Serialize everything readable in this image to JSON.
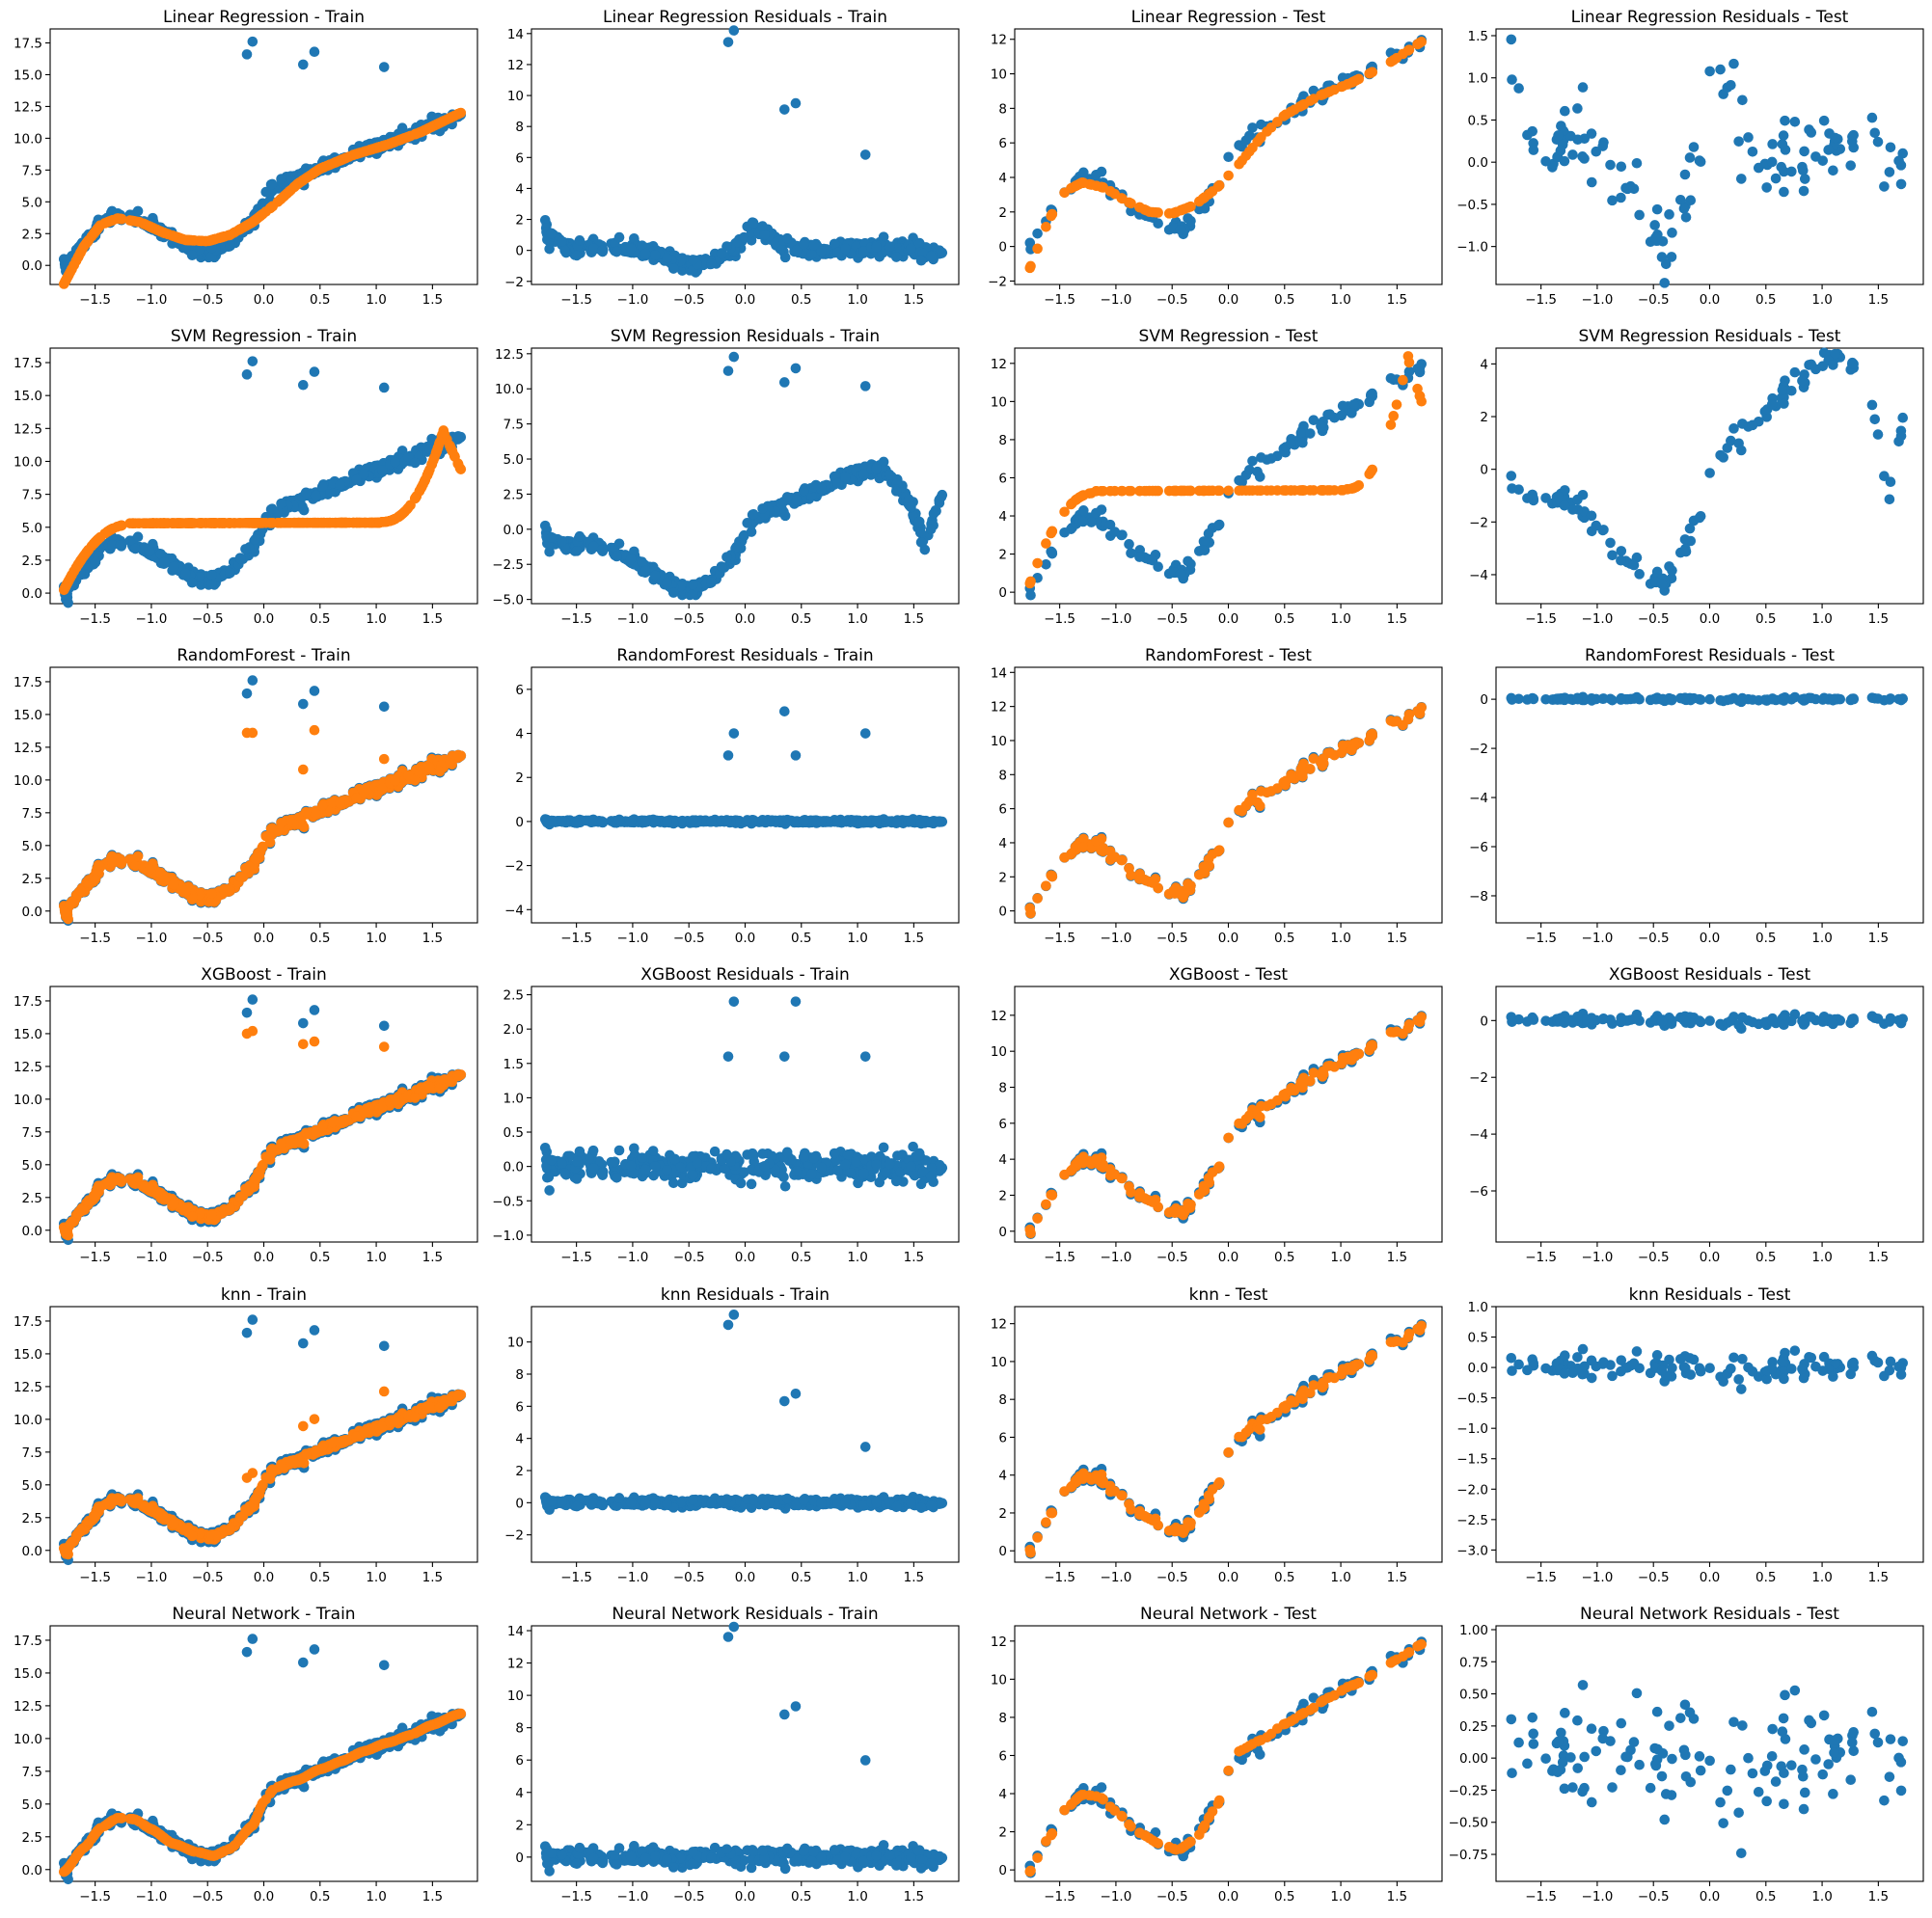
{
  "chart_data": {
    "type": "scatter",
    "grid": false,
    "colors": {
      "actual": "#1f77b4",
      "predicted": "#ff7f0e"
    },
    "models": [
      {
        "name": "Linear Regression",
        "kind": "lin",
        "train_y": {
          "ticks": [
            0.0,
            2.5,
            5.0,
            7.5,
            10.0,
            12.5,
            15.0,
            17.5
          ],
          "labels": [
            "0.0",
            "2.5",
            "5.0",
            "7.5",
            "10.0",
            "12.5",
            "15.0",
            "17.5"
          ],
          "range": [
            -1.5,
            18.6
          ]
        },
        "train_res_y": {
          "ticks": [
            -2,
            0,
            2,
            4,
            6,
            8,
            10,
            12,
            14
          ],
          "labels": [
            "−2",
            "0",
            "2",
            "4",
            "6",
            "8",
            "10",
            "12",
            "14"
          ],
          "range": [
            -2.2,
            14.3
          ]
        },
        "test_y": {
          "ticks": [
            -2,
            0,
            2,
            4,
            6,
            8,
            10,
            12
          ],
          "labels": [
            "−2",
            "0",
            "2",
            "4",
            "6",
            "8",
            "10",
            "12"
          ],
          "range": [
            -2.2,
            12.6
          ]
        },
        "test_res_y": {
          "ticks": [
            -1.0,
            -0.5,
            0.0,
            0.5,
            1.0,
            1.5
          ],
          "labels": [
            "−1.0",
            "−0.5",
            "0.0",
            "0.5",
            "1.0",
            "1.5"
          ],
          "range": [
            -1.45,
            1.58
          ]
        }
      },
      {
        "name": "SVM Regression",
        "kind": "svm",
        "train_y": {
          "ticks": [
            0.0,
            2.5,
            5.0,
            7.5,
            10.0,
            12.5,
            15.0,
            17.5
          ],
          "labels": [
            "0.0",
            "2.5",
            "5.0",
            "7.5",
            "10.0",
            "12.5",
            "15.0",
            "17.5"
          ],
          "range": [
            -0.8,
            18.6
          ]
        },
        "train_res_y": {
          "ticks": [
            -5.0,
            -2.5,
            0.0,
            2.5,
            5.0,
            7.5,
            10.0,
            12.5
          ],
          "labels": [
            "−5.0",
            "−2.5",
            "0.0",
            "2.5",
            "5.0",
            "7.5",
            "10.0",
            "12.5"
          ],
          "range": [
            -5.3,
            12.9
          ]
        },
        "test_y": {
          "ticks": [
            0,
            2,
            4,
            6,
            8,
            10,
            12
          ],
          "labels": [
            "0",
            "2",
            "4",
            "6",
            "8",
            "10",
            "12"
          ],
          "range": [
            -0.6,
            12.8
          ]
        },
        "test_res_y": {
          "ticks": [
            -4,
            -2,
            0,
            2,
            4
          ],
          "labels": [
            "−4",
            "−2",
            "0",
            "2",
            "4"
          ],
          "range": [
            -5.1,
            4.6
          ]
        }
      },
      {
        "name": "RandomForest",
        "kind": "rf",
        "train_y": {
          "ticks": [
            0.0,
            2.5,
            5.0,
            7.5,
            10.0,
            12.5,
            15.0,
            17.5
          ],
          "labels": [
            "0.0",
            "2.5",
            "5.0",
            "7.5",
            "10.0",
            "12.5",
            "15.0",
            "17.5"
          ],
          "range": [
            -0.9,
            18.6
          ]
        },
        "train_res_y": {
          "ticks": [
            -4,
            -2,
            0,
            2,
            4,
            6
          ],
          "labels": [
            "−4",
            "−2",
            "0",
            "2",
            "4",
            "6"
          ],
          "range": [
            -4.6,
            7.0
          ]
        },
        "test_y": {
          "ticks": [
            0,
            2,
            4,
            6,
            8,
            10,
            12,
            14
          ],
          "labels": [
            "0",
            "2",
            "4",
            "6",
            "8",
            "10",
            "12",
            "14"
          ],
          "range": [
            -0.7,
            14.3
          ]
        },
        "test_res_y": {
          "ticks": [
            -8,
            -6,
            -4,
            -2,
            0
          ],
          "labels": [
            "−8",
            "−6",
            "−4",
            "−2",
            "0"
          ],
          "range": [
            -9.1,
            1.3
          ]
        }
      },
      {
        "name": "XGBoost",
        "kind": "xgb",
        "train_y": {
          "ticks": [
            0.0,
            2.5,
            5.0,
            7.5,
            10.0,
            12.5,
            15.0,
            17.5
          ],
          "labels": [
            "0.0",
            "2.5",
            "5.0",
            "7.5",
            "10.0",
            "12.5",
            "15.0",
            "17.5"
          ],
          "range": [
            -0.9,
            18.6
          ]
        },
        "train_res_y": {
          "ticks": [
            -1.0,
            -0.5,
            0.0,
            0.5,
            1.0,
            1.5,
            2.0,
            2.5
          ],
          "labels": [
            "−1.0",
            "−0.5",
            "0.0",
            "0.5",
            "1.0",
            "1.5",
            "2.0",
            "2.5"
          ],
          "range": [
            -1.1,
            2.62
          ]
        },
        "test_y": {
          "ticks": [
            0,
            2,
            4,
            6,
            8,
            10,
            12
          ],
          "labels": [
            "0",
            "2",
            "4",
            "6",
            "8",
            "10",
            "12"
          ],
          "range": [
            -0.6,
            13.6
          ]
        },
        "test_res_y": {
          "ticks": [
            -6,
            -4,
            -2,
            0
          ],
          "labels": [
            "−6",
            "−4",
            "−2",
            "0"
          ],
          "range": [
            -7.8,
            1.2
          ]
        }
      },
      {
        "name": "knn",
        "kind": "knn",
        "train_y": {
          "ticks": [
            0.0,
            2.5,
            5.0,
            7.5,
            10.0,
            12.5,
            15.0,
            17.5
          ],
          "labels": [
            "0.0",
            "2.5",
            "5.0",
            "7.5",
            "10.0",
            "12.5",
            "15.0",
            "17.5"
          ],
          "range": [
            -0.9,
            18.6
          ]
        },
        "train_res_y": {
          "ticks": [
            -2,
            0,
            2,
            4,
            6,
            8,
            10
          ],
          "labels": [
            "−2",
            "0",
            "2",
            "4",
            "6",
            "8",
            "10"
          ],
          "range": [
            -3.7,
            12.2
          ]
        },
        "test_y": {
          "ticks": [
            0,
            2,
            4,
            6,
            8,
            10,
            12
          ],
          "labels": [
            "0",
            "2",
            "4",
            "6",
            "8",
            "10",
            "12"
          ],
          "range": [
            -0.6,
            12.9
          ]
        },
        "test_res_y": {
          "ticks": [
            -3.0,
            -2.5,
            -2.0,
            -1.5,
            -1.0,
            -0.5,
            0.0,
            0.5,
            1.0
          ],
          "labels": [
            "−3.0",
            "−2.5",
            "−2.0",
            "−1.5",
            "−1.0",
            "−0.5",
            "0.0",
            "0.5",
            "1.0"
          ],
          "range": [
            -3.2,
            1.0
          ]
        }
      },
      {
        "name": "Neural Network",
        "kind": "nn",
        "train_y": {
          "ticks": [
            0.0,
            2.5,
            5.0,
            7.5,
            10.0,
            12.5,
            15.0,
            17.5
          ],
          "labels": [
            "0.0",
            "2.5",
            "5.0",
            "7.5",
            "10.0",
            "12.5",
            "15.0",
            "17.5"
          ],
          "range": [
            -0.9,
            18.6
          ]
        },
        "train_res_y": {
          "ticks": [
            0,
            2,
            4,
            6,
            8,
            10,
            12,
            14
          ],
          "labels": [
            "0",
            "2",
            "4",
            "6",
            "8",
            "10",
            "12",
            "14"
          ],
          "range": [
            -1.5,
            14.3
          ]
        },
        "test_y": {
          "ticks": [
            0,
            2,
            4,
            6,
            8,
            10,
            12
          ],
          "labels": [
            "0",
            "2",
            "4",
            "6",
            "8",
            "10",
            "12"
          ],
          "range": [
            -0.6,
            12.8
          ]
        },
        "test_res_y": {
          "ticks": [
            -0.75,
            -0.5,
            -0.25,
            0.0,
            0.25,
            0.5,
            0.75,
            1.0
          ],
          "labels": [
            "−0.75",
            "−0.50",
            "−0.25",
            "0.00",
            "0.25",
            "0.50",
            "0.75",
            "1.00"
          ],
          "range": [
            -0.96,
            1.03
          ]
        }
      }
    ],
    "x": {
      "ticks": [
        -1.5,
        -1.0,
        -0.5,
        0.0,
        0.5,
        1.0,
        1.5
      ],
      "labels": [
        "−1.5",
        "−1.0",
        "−0.5",
        "0.0",
        "0.5",
        "1.0",
        "1.5"
      ],
      "range": [
        -1.9,
        1.9
      ]
    },
    "panels": [
      "Linear Regression - Train",
      "Linear Regression Residuals - Train",
      "Linear Regression - Test",
      "Linear Regression Residuals - Test",
      "SVM Regression - Train",
      "SVM Regression Residuals - Train",
      "SVM Regression - Test",
      "SVM Regression Residuals - Test",
      "RandomForest - Train",
      "RandomForest Residuals - Train",
      "RandomForest - Test",
      "RandomForest Residuals - Test",
      "XGBoost - Train",
      "XGBoost Residuals - Train",
      "XGBoost - Test",
      "XGBoost Residuals - Test",
      "knn - Train",
      "knn Residuals - Train",
      "knn - Test",
      "knn Residuals - Test",
      "Neural Network - Train",
      "Neural Network Residuals - Train",
      "Neural Network - Test",
      "Neural Network Residuals - Test"
    ],
    "outliers_x": [
      -0.15,
      -0.1,
      0.35,
      0.45,
      1.07
    ],
    "outliers_y": [
      16.6,
      17.6,
      15.8,
      16.8,
      15.6
    ]
  }
}
